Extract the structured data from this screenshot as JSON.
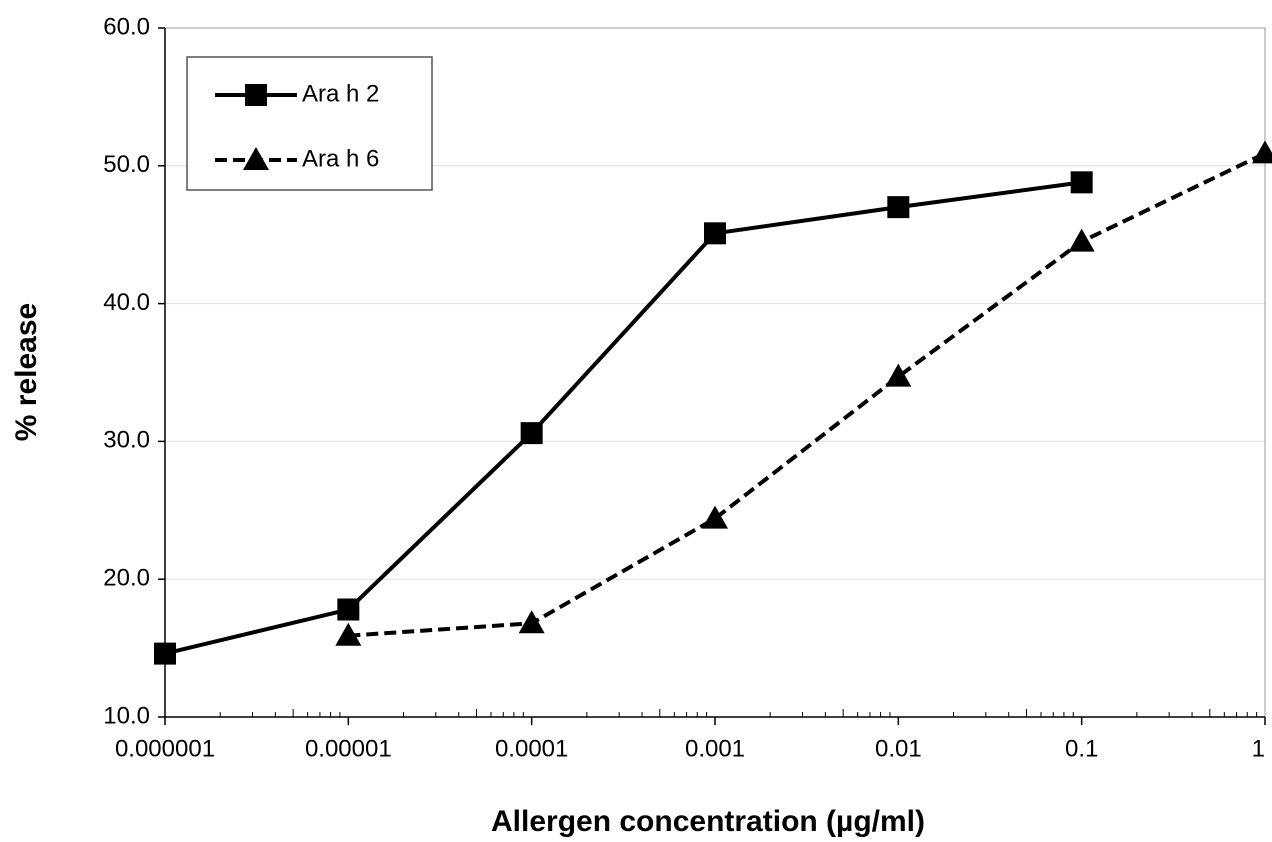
{
  "chart_data": {
    "type": "line",
    "xlabel": "Allergen concentration (µg/ml)",
    "ylabel": "% release",
    "x": [
      1e-06,
      1e-05,
      0.0001,
      0.001,
      0.01,
      0.1,
      1
    ],
    "series": [
      {
        "name": "Ara h 2",
        "color": "#000000",
        "linestyle": "solid",
        "marker": "square",
        "values": [
          14.6,
          17.8,
          30.6,
          45.1,
          47.0,
          48.8,
          null
        ]
      },
      {
        "name": "Ara h 6",
        "color": "#000000",
        "linestyle": "dashed",
        "marker": "triangle",
        "values": [
          null,
          15.9,
          16.8,
          24.4,
          34.7,
          44.5,
          50.9
        ]
      }
    ],
    "xscale": "log",
    "xlim": [
      1e-06,
      1
    ],
    "xticks": [
      1e-06,
      1e-05,
      0.0001,
      0.001,
      0.01,
      0.1,
      1
    ],
    "ylim": [
      10,
      60
    ],
    "yticks": [
      {
        "value": 10,
        "label": "10.0"
      },
      {
        "value": 20,
        "label": "20.0"
      },
      {
        "value": 30,
        "label": "30.0"
      },
      {
        "value": 40,
        "label": "40.0"
      },
      {
        "value": 50,
        "label": "50.0"
      },
      {
        "value": 60,
        "label": "60.0"
      }
    ],
    "grid": true,
    "legend": "upper left"
  }
}
